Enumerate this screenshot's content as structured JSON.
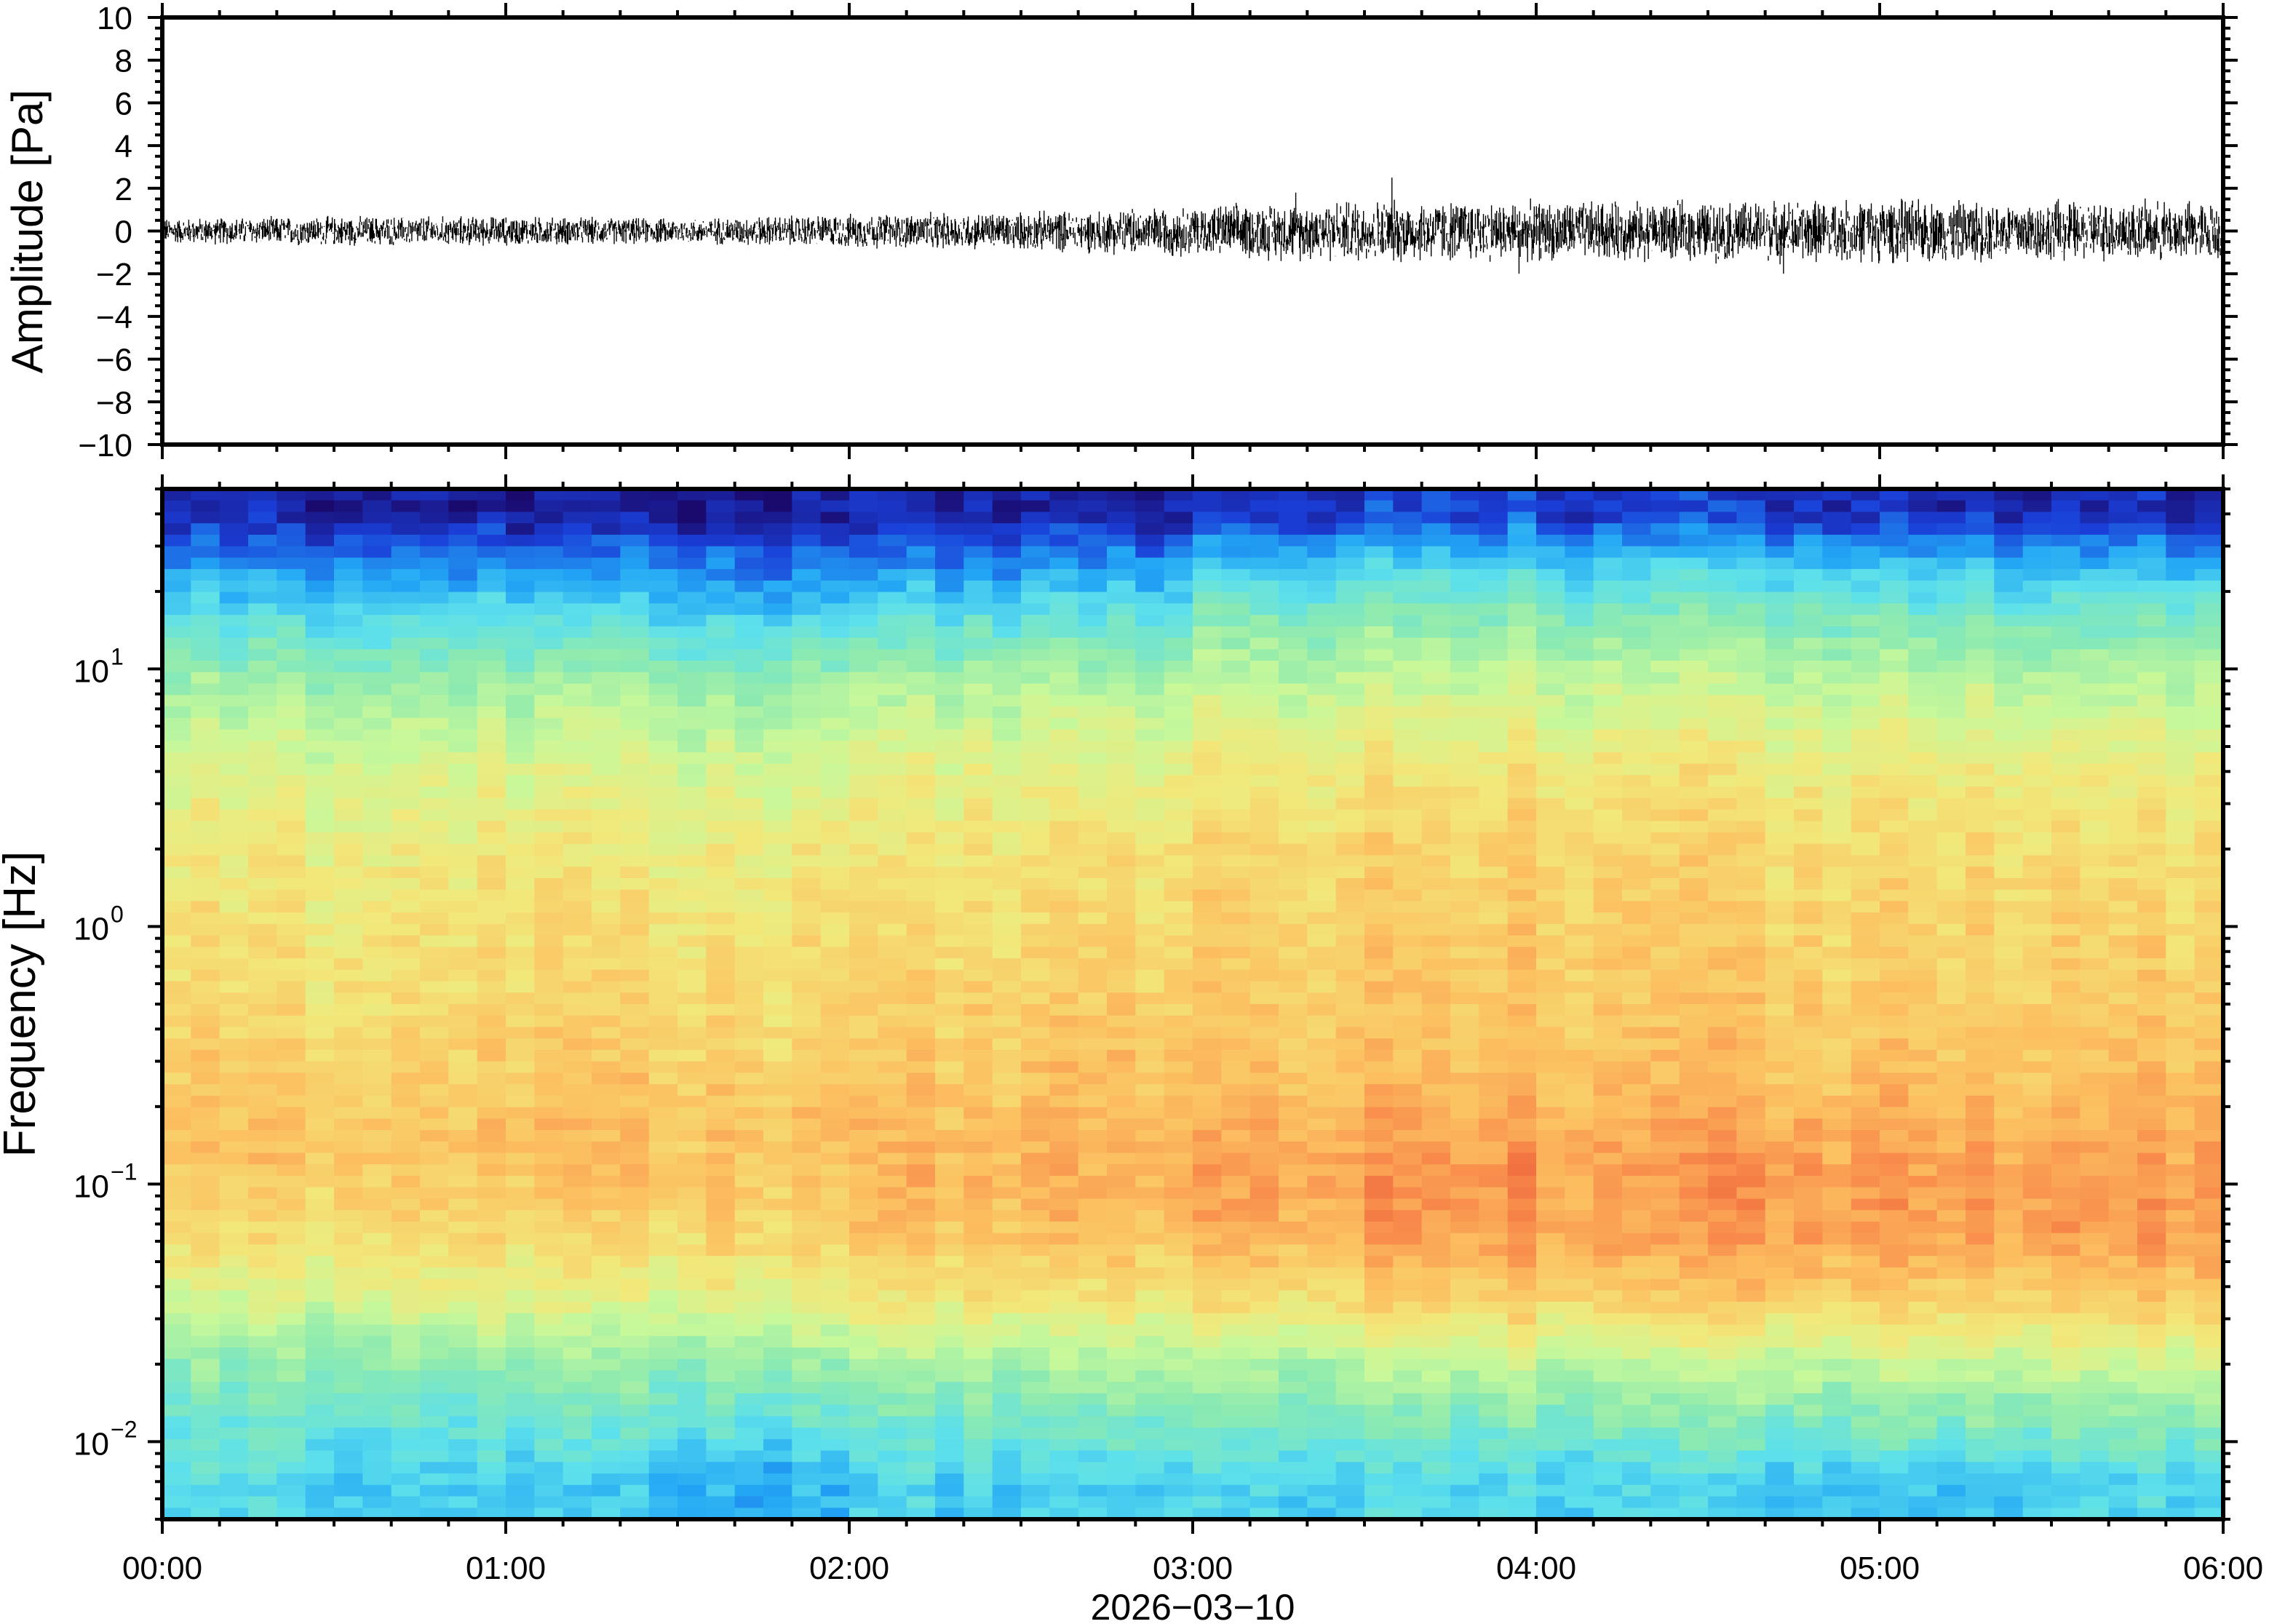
{
  "chart_data": [
    {
      "type": "line",
      "title": "",
      "ylabel": "Amplitude [Pa]",
      "xlabel": "",
      "ylim": [
        -10,
        10
      ],
      "yticks": [
        "10",
        "8",
        "6",
        "4",
        "2",
        "0",
        "−2",
        "−4",
        "−6",
        "−8",
        "−10"
      ],
      "ytick_values": [
        10,
        8,
        6,
        4,
        2,
        0,
        -2,
        -4,
        -6,
        -8,
        -10
      ],
      "xlim_hours": [
        0,
        6
      ],
      "envelope_hours": [
        0,
        0.5,
        1,
        1.5,
        2,
        2.5,
        3,
        3.5,
        4,
        4.5,
        5,
        5.5
      ],
      "envelope_amplitude_pa": [
        0.3,
        0.35,
        0.35,
        0.3,
        0.4,
        0.45,
        0.6,
        0.75,
        0.7,
        0.7,
        0.75,
        0.7
      ],
      "peak_events": [
        {
          "hour": 3.58,
          "value": 2.5
        },
        {
          "hour": 3.3,
          "value": 1.8
        },
        {
          "hour": 4.72,
          "value": -2.0
        },
        {
          "hour": 5.52,
          "value": 1.5
        },
        {
          "hour": 3.95,
          "value": -2.0
        }
      ]
    },
    {
      "type": "heatmap",
      "ylabel": "Frequency [Hz]",
      "xlabel": "2026−03−10",
      "yscale": "log",
      "ylim": [
        0.005,
        50
      ],
      "ytick_labels": [
        {
          "base": "10",
          "exp": "1",
          "value": 10
        },
        {
          "base": "10",
          "exp": "0",
          "value": 1
        },
        {
          "base": "10",
          "exp": "−1",
          "value": 0.1
        },
        {
          "base": "10",
          "exp": "−2",
          "value": 0.01
        }
      ],
      "xtick_labels": [
        "00:00",
        "01:00",
        "02:00",
        "03:00",
        "04:00",
        "05:00",
        "06:00"
      ],
      "time_hours": [
        0,
        0.5,
        1,
        1.5,
        2,
        2.5,
        3,
        3.5,
        4,
        4.5,
        5,
        5.5
      ],
      "freq_hz": [
        40,
        25,
        15,
        8,
        4,
        2,
        1,
        0.5,
        0.25,
        0.15,
        0.1,
        0.06,
        0.035,
        0.02,
        0.012,
        0.007
      ],
      "relative_power": [
        [
          0.05,
          0.2,
          0.35,
          0.5,
          0.6,
          0.65,
          0.68,
          0.7,
          0.74,
          0.76,
          0.74,
          0.68,
          0.58,
          0.45,
          0.38,
          0.32
        ],
        [
          0.04,
          0.2,
          0.34,
          0.5,
          0.6,
          0.65,
          0.68,
          0.7,
          0.74,
          0.76,
          0.75,
          0.7,
          0.6,
          0.45,
          0.37,
          0.3
        ],
        [
          0.04,
          0.19,
          0.34,
          0.5,
          0.6,
          0.65,
          0.69,
          0.71,
          0.75,
          0.77,
          0.75,
          0.7,
          0.6,
          0.46,
          0.38,
          0.28
        ],
        [
          0.04,
          0.18,
          0.33,
          0.49,
          0.6,
          0.66,
          0.69,
          0.71,
          0.75,
          0.77,
          0.76,
          0.72,
          0.62,
          0.46,
          0.37,
          0.25
        ],
        [
          0.05,
          0.2,
          0.36,
          0.52,
          0.62,
          0.67,
          0.7,
          0.72,
          0.76,
          0.78,
          0.79,
          0.76,
          0.66,
          0.5,
          0.4,
          0.3
        ],
        [
          0.05,
          0.21,
          0.37,
          0.53,
          0.63,
          0.68,
          0.71,
          0.73,
          0.77,
          0.79,
          0.8,
          0.76,
          0.66,
          0.5,
          0.4,
          0.3
        ],
        [
          0.1,
          0.3,
          0.45,
          0.57,
          0.67,
          0.72,
          0.74,
          0.75,
          0.78,
          0.82,
          0.84,
          0.8,
          0.7,
          0.52,
          0.42,
          0.32
        ],
        [
          0.12,
          0.32,
          0.46,
          0.58,
          0.68,
          0.73,
          0.75,
          0.76,
          0.79,
          0.84,
          0.87,
          0.84,
          0.74,
          0.55,
          0.42,
          0.33
        ],
        [
          0.1,
          0.3,
          0.45,
          0.57,
          0.67,
          0.72,
          0.74,
          0.75,
          0.78,
          0.82,
          0.84,
          0.82,
          0.72,
          0.54,
          0.42,
          0.32
        ],
        [
          0.09,
          0.29,
          0.44,
          0.56,
          0.66,
          0.71,
          0.73,
          0.75,
          0.78,
          0.83,
          0.86,
          0.84,
          0.74,
          0.55,
          0.43,
          0.3
        ],
        [
          0.08,
          0.28,
          0.43,
          0.56,
          0.66,
          0.71,
          0.73,
          0.75,
          0.78,
          0.82,
          0.85,
          0.84,
          0.74,
          0.56,
          0.44,
          0.3
        ],
        [
          0.07,
          0.27,
          0.42,
          0.55,
          0.65,
          0.7,
          0.73,
          0.75,
          0.78,
          0.82,
          0.85,
          0.84,
          0.75,
          0.57,
          0.45,
          0.32
        ]
      ],
      "colormap": [
        "#1a0a6e",
        "#1a3fd8",
        "#22a6f5",
        "#5ce0ec",
        "#8ceab0",
        "#c8f89a",
        "#f2e87a",
        "#fcc060",
        "#f8884a",
        "#e0402a"
      ]
    }
  ]
}
